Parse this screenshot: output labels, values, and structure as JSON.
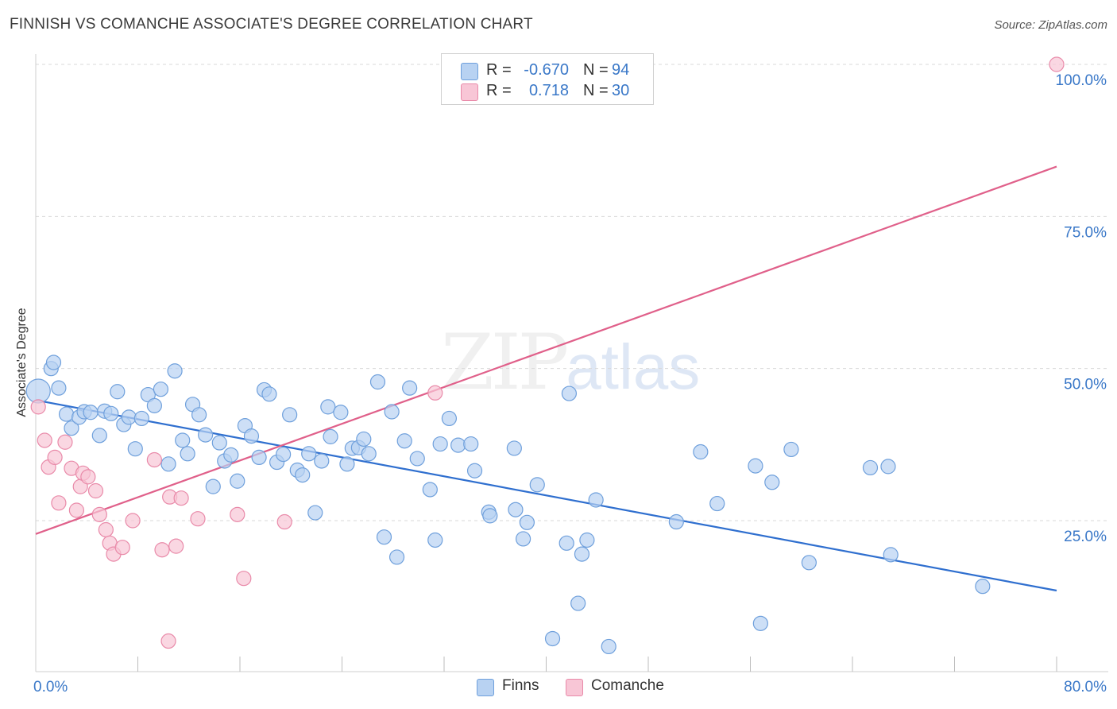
{
  "title": "FINNISH VS COMANCHE ASSOCIATE'S DEGREE CORRELATION CHART",
  "source": "Source: ZipAtlas.com",
  "watermark": {
    "part1": "ZIP",
    "part2": "atlas"
  },
  "colors": {
    "finns_fill": "#b8d2f2",
    "finns_stroke": "#6fa0dc",
    "finns_line": "#2f6fcf",
    "comanche_fill": "#f8c6d6",
    "comanche_stroke": "#e98aa9",
    "comanche_line": "#e0608a",
    "tick_label": "#3a78c8",
    "grid": "#d9d9d9"
  },
  "legend": {
    "rows": [
      {
        "r_label": "R =",
        "r_value": "-0.670",
        "n_label": "N =",
        "n_value": "94",
        "series": "finns"
      },
      {
        "r_label": "R =",
        "r_value": "0.718",
        "n_label": "N =",
        "n_value": "30",
        "series": "comanche"
      }
    ]
  },
  "bottom_legend": [
    {
      "label": "Finns",
      "series": "finns"
    },
    {
      "label": "Comanche",
      "series": "comanche"
    }
  ],
  "chart_data": {
    "type": "scatter",
    "title": "FINNISH VS COMANCHE ASSOCIATE'S DEGREE CORRELATION CHART",
    "xlabel": "",
    "ylabel": "Associate's Degree",
    "xlim": [
      0,
      80
    ],
    "ylim": [
      0,
      102
    ],
    "x_tick_labels": [
      {
        "value": 0,
        "label": "0.0%"
      },
      {
        "value": 80,
        "label": "80.0%"
      }
    ],
    "x_minor_ticks": [
      8,
      16,
      24,
      32,
      40,
      48,
      56,
      64,
      72,
      80
    ],
    "y_ticks": [
      {
        "value": 25,
        "label": "25.0%"
      },
      {
        "value": 50,
        "label": "50.0%"
      },
      {
        "value": 75,
        "label": "75.0%"
      },
      {
        "value": 100,
        "label": "100.0%"
      }
    ],
    "grid": "horizontal-dashed",
    "legend_position": "top-center",
    "series": [
      {
        "name": "Finns",
        "key": "finns",
        "trend": {
          "x0": 0,
          "y0": 44.8,
          "x1": 80,
          "y1": 13.5
        },
        "points": [
          [
            0.2,
            46.3
          ],
          [
            1.2,
            50
          ],
          [
            1.4,
            51
          ],
          [
            1.8,
            46.8
          ],
          [
            2.4,
            42.5
          ],
          [
            2.8,
            40.2
          ],
          [
            3.4,
            42
          ],
          [
            3.8,
            42.9
          ],
          [
            4.3,
            42.8
          ],
          [
            5,
            39
          ],
          [
            5.4,
            43
          ],
          [
            5.9,
            42.6
          ],
          [
            6.4,
            46.2
          ],
          [
            6.9,
            40.8
          ],
          [
            7.3,
            42
          ],
          [
            7.8,
            36.8
          ],
          [
            8.3,
            41.8
          ],
          [
            8.8,
            45.7
          ],
          [
            9.3,
            43.9
          ],
          [
            9.8,
            46.6
          ],
          [
            10.4,
            34.3
          ],
          [
            10.9,
            49.6
          ],
          [
            11.5,
            38.2
          ],
          [
            11.9,
            36
          ],
          [
            12.3,
            44.1
          ],
          [
            12.8,
            42.4
          ],
          [
            13.3,
            39.1
          ],
          [
            13.9,
            30.6
          ],
          [
            14.4,
            37.8
          ],
          [
            14.8,
            34.8
          ],
          [
            15.3,
            35.8
          ],
          [
            15.8,
            31.5
          ],
          [
            16.4,
            40.6
          ],
          [
            16.9,
            38.9
          ],
          [
            17.5,
            35.4
          ],
          [
            17.9,
            46.5
          ],
          [
            18.3,
            45.8
          ],
          [
            18.9,
            34.6
          ],
          [
            19.4,
            35.9
          ],
          [
            19.9,
            42.4
          ],
          [
            20.5,
            33.3
          ],
          [
            20.9,
            32.5
          ],
          [
            21.4,
            36
          ],
          [
            21.9,
            26.3
          ],
          [
            22.4,
            34.8
          ],
          [
            22.9,
            43.7
          ],
          [
            23.1,
            38.8
          ],
          [
            23.9,
            42.8
          ],
          [
            24.4,
            34.3
          ],
          [
            24.8,
            36.9
          ],
          [
            25.3,
            37
          ],
          [
            25.7,
            38.4
          ],
          [
            26.1,
            36
          ],
          [
            26.8,
            47.8
          ],
          [
            27.3,
            22.3
          ],
          [
            27.9,
            42.9
          ],
          [
            28.3,
            19
          ],
          [
            28.9,
            38.1
          ],
          [
            29.3,
            46.8
          ],
          [
            29.9,
            35.2
          ],
          [
            30.9,
            30.1
          ],
          [
            31.3,
            21.8
          ],
          [
            31.7,
            37.6
          ],
          [
            32.4,
            41.8
          ],
          [
            33.1,
            37.4
          ],
          [
            34.1,
            37.6
          ],
          [
            34.4,
            33.2
          ],
          [
            35.5,
            26.4
          ],
          [
            35.6,
            25.8
          ],
          [
            37.5,
            36.9
          ],
          [
            37.6,
            26.8
          ],
          [
            38.2,
            22
          ],
          [
            38.5,
            24.7
          ],
          [
            39.3,
            30.9
          ],
          [
            40.5,
            5.6
          ],
          [
            41.6,
            21.3
          ],
          [
            41.8,
            45.9
          ],
          [
            42.5,
            11.4
          ],
          [
            42.8,
            19.5
          ],
          [
            43.2,
            21.8
          ],
          [
            43.9,
            28.4
          ],
          [
            44.9,
            4.3
          ],
          [
            50.2,
            24.8
          ],
          [
            52.1,
            36.3
          ],
          [
            53.4,
            27.8
          ],
          [
            56.4,
            34
          ],
          [
            56.8,
            8.1
          ],
          [
            57.7,
            31.3
          ],
          [
            59.2,
            36.7
          ],
          [
            60.6,
            18.1
          ],
          [
            65.4,
            33.7
          ],
          [
            67,
            19.4
          ],
          [
            74.2,
            14.2
          ],
          [
            66.8,
            33.9
          ]
        ]
      },
      {
        "name": "Comanche",
        "key": "comanche",
        "trend": {
          "x0": 0,
          "y0": 22.8,
          "x1": 80,
          "y1": 83.2
        },
        "points": [
          [
            0.2,
            43.7
          ],
          [
            0.7,
            38.2
          ],
          [
            1,
            33.8
          ],
          [
            1.5,
            35.4
          ],
          [
            1.8,
            27.9
          ],
          [
            2.3,
            37.9
          ],
          [
            2.8,
            33.6
          ],
          [
            3.2,
            26.7
          ],
          [
            3.5,
            30.6
          ],
          [
            3.7,
            32.8
          ],
          [
            4.1,
            32.2
          ],
          [
            4.7,
            29.9
          ],
          [
            5,
            26
          ],
          [
            5.5,
            23.5
          ],
          [
            5.8,
            21.3
          ],
          [
            6.1,
            19.5
          ],
          [
            6.8,
            20.6
          ],
          [
            7.6,
            25
          ],
          [
            9.3,
            35
          ],
          [
            9.9,
            20.2
          ],
          [
            10.5,
            28.9
          ],
          [
            11,
            20.8
          ],
          [
            11.4,
            28.7
          ],
          [
            12.7,
            25.3
          ],
          [
            15.8,
            26
          ],
          [
            16.3,
            15.5
          ],
          [
            19.5,
            24.8
          ],
          [
            31.3,
            46
          ],
          [
            10.4,
            5.2
          ],
          [
            80,
            100
          ]
        ]
      }
    ]
  }
}
